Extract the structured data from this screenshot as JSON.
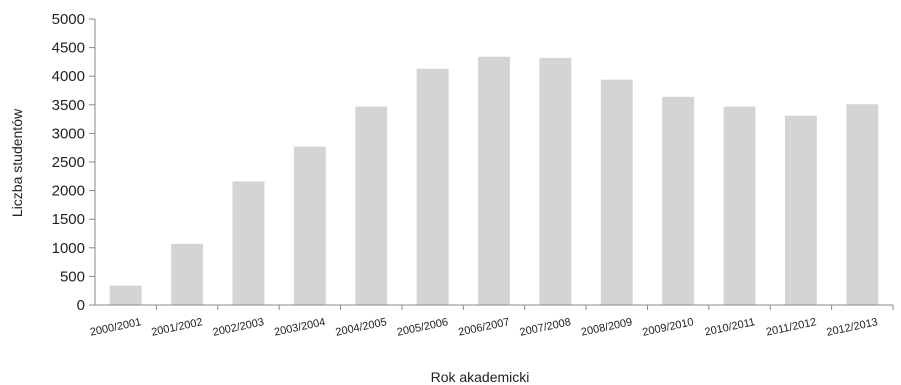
{
  "chart_data": {
    "type": "bar",
    "title": "",
    "xlabel": "Rok akademicki",
    "ylabel": "Liczba studentów",
    "ylim": [
      0,
      5000
    ],
    "yticks": [
      0,
      500,
      1000,
      1500,
      2000,
      2500,
      3000,
      3500,
      4000,
      4500,
      5000
    ],
    "grid": false,
    "bar_color": "#d4d4d5",
    "axis_color": "#8a8a8a",
    "categories": [
      "2000/2001",
      "2001/2002",
      "2002/2003",
      "2003/2004",
      "2004/2005",
      "2005/2006",
      "2006/2007",
      "2007/2008",
      "2008/2009",
      "2009/2010",
      "2010/2011",
      "2011/2012",
      "2012/2013"
    ],
    "values": [
      340,
      1070,
      2160,
      2770,
      3470,
      4130,
      4340,
      4320,
      3940,
      3640,
      3470,
      3310,
      3510
    ]
  }
}
